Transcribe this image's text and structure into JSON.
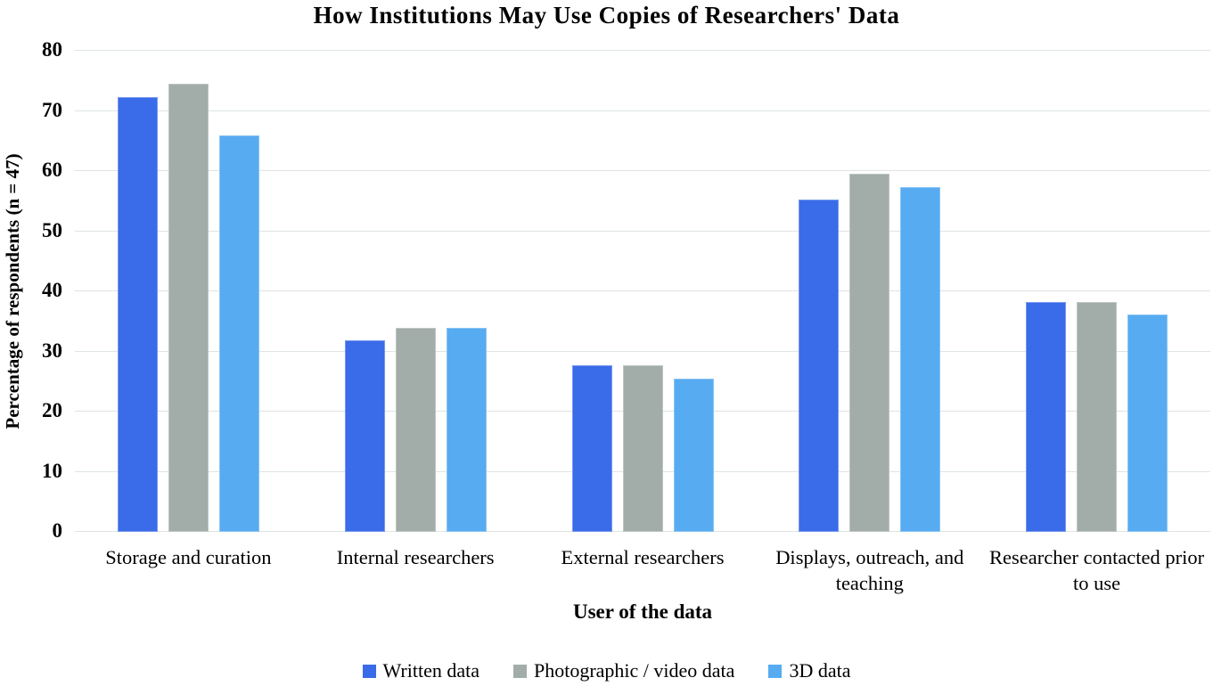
{
  "chart_data": {
    "type": "bar",
    "title": "How Institutions May Use Copies of Researchers' Data",
    "xlabel": "User of the data",
    "ylabel": "Percentage of respondents (n = 47)",
    "ylim": [
      0,
      80
    ],
    "ytick_step": 10,
    "ytick_labels": [
      "0",
      "10",
      "20",
      "30",
      "40",
      "50",
      "60",
      "70",
      "80"
    ],
    "grid": "horizontal",
    "gridline_color": "#dde5e2",
    "legend_position": "bottom",
    "categories": [
      "Storage and curation",
      "Internal researchers",
      "External researchers",
      "Displays, outreach, and teaching",
      "Researcher contacted prior to use"
    ],
    "series": [
      {
        "name": "Written data",
        "color": "#3a6be8",
        "values": [
          72.3,
          31.9,
          27.7,
          55.3,
          38.3
        ]
      },
      {
        "name": "Photographic / video data",
        "color": "#a2aca9",
        "values": [
          74.5,
          34.0,
          27.7,
          59.6,
          38.3
        ]
      },
      {
        "name": "3D data",
        "color": "#57abf1",
        "values": [
          66.0,
          34.0,
          25.5,
          57.4,
          36.2
        ]
      }
    ]
  },
  "colors": {
    "background": "#ffffff",
    "text": "#000000"
  }
}
